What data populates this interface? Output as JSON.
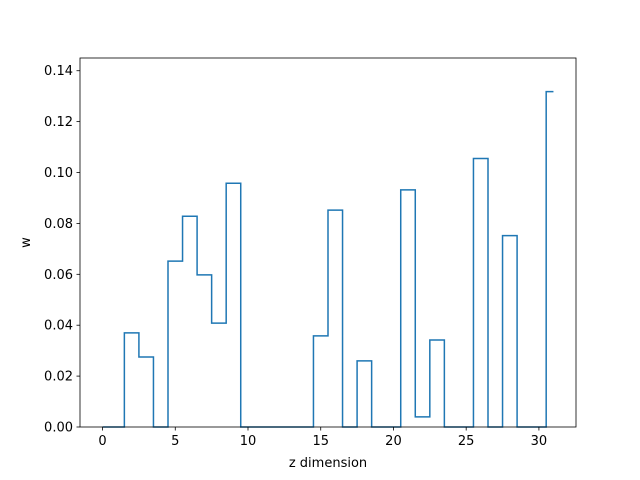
{
  "chart_data": {
    "type": "line",
    "drawstyle": "steps-mid",
    "title": "",
    "xlabel": "z dimension",
    "ylabel": "w",
    "xlim": [
      -1.55,
      32.55
    ],
    "ylim": [
      0,
      0.145
    ],
    "xticks": [
      0,
      5,
      10,
      15,
      20,
      25,
      30
    ],
    "yticks": [
      0.0,
      0.02,
      0.04,
      0.06,
      0.08,
      0.1,
      0.12,
      0.14
    ],
    "ytick_labels": [
      "0.00",
      "0.02",
      "0.04",
      "0.06",
      "0.08",
      "0.10",
      "0.12",
      "0.14"
    ],
    "grid": false,
    "color": "#1f77b4",
    "series": [
      {
        "x": [
          0,
          1,
          2,
          3,
          4,
          5,
          6,
          7,
          8,
          9,
          10,
          11,
          12,
          13,
          14,
          15,
          16,
          17,
          18,
          19,
          20,
          21,
          22,
          23,
          24,
          25,
          26,
          27,
          28,
          29,
          30,
          31
        ],
        "values": [
          0,
          0,
          0.037,
          0.0275,
          0,
          0.0652,
          0.0828,
          0.0598,
          0.0408,
          0.0958,
          0,
          0,
          0,
          0,
          0,
          0.0358,
          0.0852,
          0,
          0.026,
          0,
          0,
          0.0932,
          0.004,
          0.0342,
          0,
          0,
          0.1055,
          0,
          0.0752,
          0,
          0,
          0.1318
        ]
      }
    ]
  }
}
